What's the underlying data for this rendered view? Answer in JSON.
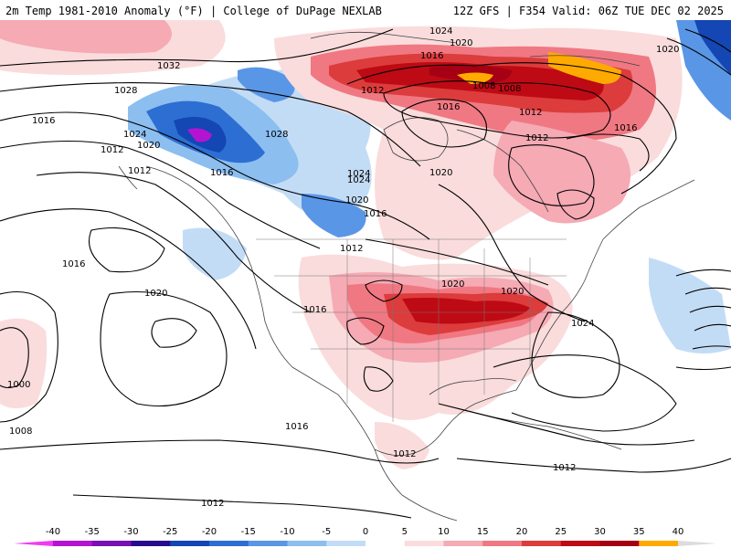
{
  "header": {
    "title": "2m Temp 1981-2010 Anomaly (°F) | College of DuPage NEXLAB",
    "run": "12Z GFS | F354 Valid: 06Z TUE DEC 02 2025"
  },
  "colorbar": {
    "ticks": [
      "-40",
      "-35",
      "-30",
      "-25",
      "-20",
      "-15",
      "-10",
      "-5",
      "0",
      "5",
      "10",
      "15",
      "20",
      "25",
      "30",
      "35",
      "40"
    ],
    "colors": [
      "#f03cf0",
      "#b414d2",
      "#7a0fb4",
      "#280a8c",
      "#1446b4",
      "#2d6ed2",
      "#5a96e6",
      "#8cbef0",
      "#c3dcf5",
      "#ffffff",
      "#fadcdc",
      "#f5aab4",
      "#f07882",
      "#dc3c3c",
      "#be0a14",
      "#a50014",
      "#ffaa00",
      "#ffd200",
      "#dcdcdc"
    ]
  },
  "pressure_labels": [
    "1024",
    "1020",
    "1016",
    "1012",
    "1008",
    "1032",
    "1028",
    "1016",
    "1024",
    "1020",
    "1012",
    "1016",
    "1028",
    "1024",
    "1020",
    "1016",
    "1012",
    "1012",
    "1016",
    "1008",
    "1012",
    "1016",
    "1020",
    "1020",
    "1024",
    "1012",
    "1020",
    "1020",
    "1016",
    "1024",
    "1000",
    "1008",
    "1016",
    "1020",
    "1012",
    "1016",
    "1012",
    "1012"
  ]
}
